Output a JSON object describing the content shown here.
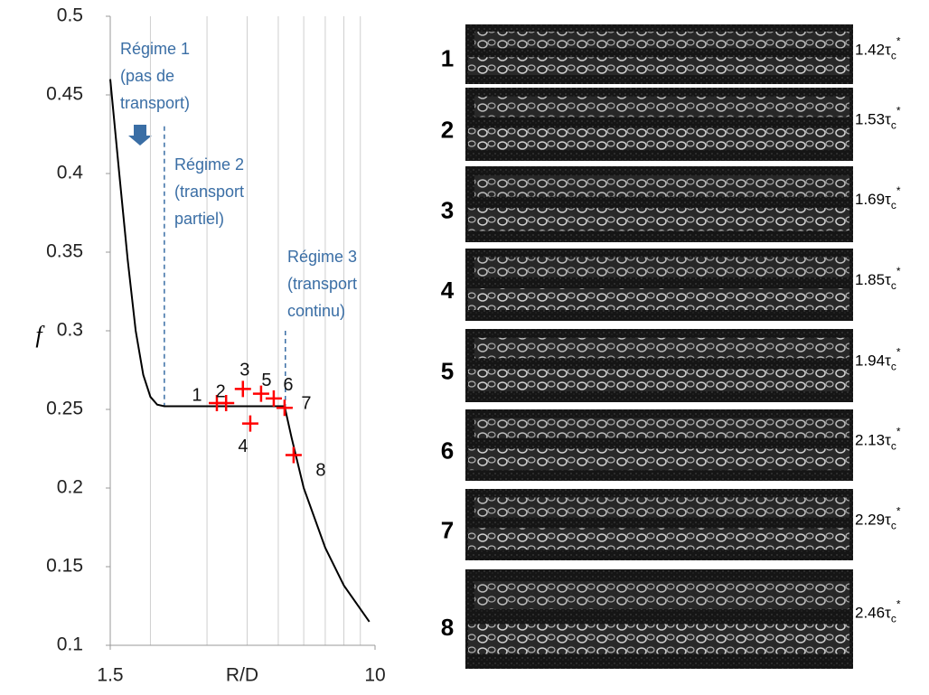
{
  "chart_data": {
    "type": "line",
    "xlabel": "R/D",
    "ylabel": "f",
    "xscale": "log",
    "xlim": [
      1.5,
      10
    ],
    "ylim": [
      0.1,
      0.5
    ],
    "xticks": [
      1.5,
      10
    ],
    "minor_xticks": [
      2,
      3,
      4,
      5,
      6,
      7,
      8,
      9
    ],
    "yticks": [
      0.1,
      0.15,
      0.2,
      0.25,
      0.3,
      0.35,
      0.4,
      0.45,
      0.5
    ],
    "grid": true,
    "series": [
      {
        "name": "curve",
        "color": "#000000",
        "x": [
          1.5,
          1.6,
          1.7,
          1.8,
          1.9,
          2.0,
          2.1,
          2.21,
          5.23,
          5.5,
          6,
          7,
          8,
          9.6
        ],
        "values": [
          0.46,
          0.4,
          0.345,
          0.3,
          0.272,
          0.258,
          0.253,
          0.252,
          0.252,
          0.232,
          0.2,
          0.162,
          0.138,
          0.115
        ]
      },
      {
        "name": "points",
        "color": "#ff0000",
        "marker": "+",
        "x": [
          3.22,
          3.44,
          3.88,
          4.09,
          4.42,
          4.84,
          5.23,
          5.58
        ],
        "values": [
          0.254,
          0.254,
          0.263,
          0.241,
          0.26,
          0.257,
          0.251,
          0.221
        ],
        "point_labels": [
          "1",
          "2",
          "3",
          "4",
          "5",
          "6",
          "7",
          "8"
        ]
      }
    ],
    "regimes": [
      {
        "lines": [
          "Régime 1",
          "(pas de",
          "transport)"
        ]
      },
      {
        "lines": [
          "Régime 2",
          "(transport",
          "partiel)"
        ],
        "boundary_x": 2.21,
        "boundary_ylim": [
          0.252,
          0.43
        ]
      },
      {
        "lines": [
          "Régime 3",
          "(transport",
          "continu)"
        ],
        "boundary_x": 5.26,
        "boundary_ylim": [
          0.25,
          0.3
        ]
      }
    ]
  },
  "panels": {
    "symbol": "τ",
    "sub": "c",
    "sup": "*",
    "items": [
      {
        "number": "1",
        "label": "1.42"
      },
      {
        "number": "2",
        "label": "1.53"
      },
      {
        "number": "3",
        "label": "1.69"
      },
      {
        "number": "4",
        "label": "1.85"
      },
      {
        "number": "5",
        "label": "1.94"
      },
      {
        "number": "6",
        "label": "2.13"
      },
      {
        "number": "7",
        "label": "2.29"
      },
      {
        "number": "8",
        "label": "2.46"
      }
    ]
  }
}
